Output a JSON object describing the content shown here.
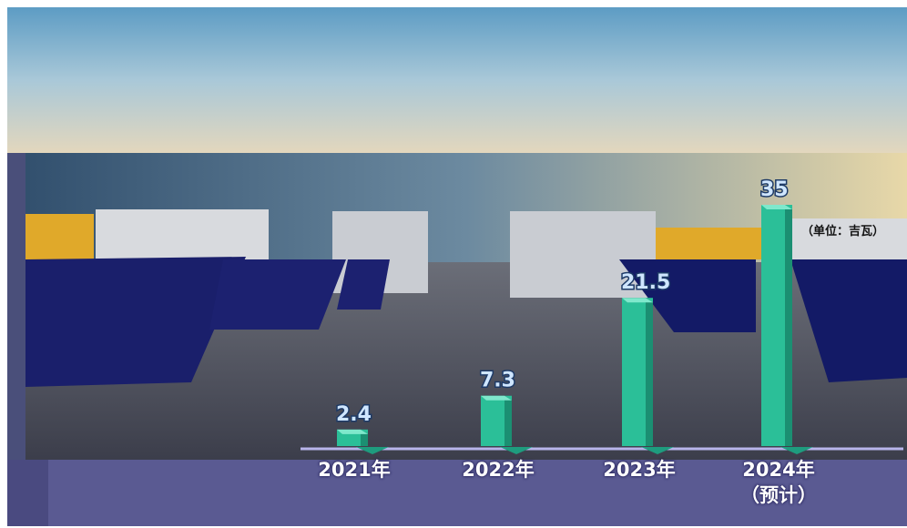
{
  "chart_data": {
    "type": "bar",
    "categories": [
      "2021年",
      "2022年",
      "2023年",
      "2024年\n（预计）"
    ],
    "values": [
      2.4,
      7.3,
      21.5,
      35
    ],
    "annotation": "（单位：吉瓦）",
    "color": "#2bbf98",
    "ylim": [
      0,
      35
    ]
  }
}
